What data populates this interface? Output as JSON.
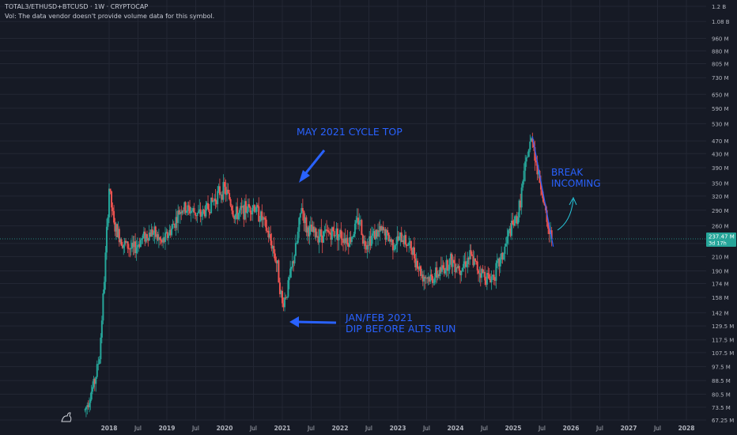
{
  "header": {
    "symbol_line": "TOTAL3/ETHUSD+BTCUSD · 1W · CRYPTOCAP",
    "volume_note": "Vol: The data vendor doesn't provide volume data for this symbol."
  },
  "colors": {
    "background": "#161a25",
    "grid": "#232734",
    "up_candle": "#26a69a",
    "down_candle": "#ef5350",
    "annotation": "#2962ff",
    "arrow_up": "#26c6da",
    "price_label_bg": "#26a69a",
    "axis_text": "#b2b5be"
  },
  "price_label": {
    "value": "237.47 M",
    "countdown": "3d 17h"
  },
  "annotations": {
    "cycle_top": "MAY 2021 CYCLE TOP",
    "dip_line1": "JAN/FEB 2021",
    "dip_line2": "DIP BEFORE ALTS RUN",
    "break_line1": "BREAK",
    "break_line2": "INCOMING"
  },
  "chart_data": {
    "type": "candlestick",
    "scale": "log",
    "interval": "1W",
    "grid": true,
    "x_ticks": [
      "2018",
      "Jul",
      "2019",
      "Jul",
      "2020",
      "Jul",
      "2021",
      "Jul",
      "2022",
      "Jul",
      "2023",
      "Jul",
      "2024",
      "Jul",
      "2025",
      "Jul",
      "2026",
      "Jul",
      "2027",
      "Jul",
      "2028"
    ],
    "y_ticks": [
      "1.2 B",
      "1.08 B",
      "960 M",
      "880 M",
      "805 M",
      "730 M",
      "650 M",
      "590 M",
      "530 M",
      "470 M",
      "430 M",
      "390 M",
      "350 M",
      "320 M",
      "290 M",
      "260 M",
      "230 M",
      "210 M",
      "190 M",
      "174 M",
      "158 M",
      "142 M",
      "129.5 M",
      "117.5 M",
      "107.5 M",
      "97.5 M",
      "88.5 M",
      "80.5 M",
      "73.5 M",
      "67.25 M"
    ],
    "ylim": [
      67250000,
      1200000000
    ],
    "xlim": [
      "2017-04",
      "2028-07"
    ],
    "anchors": [
      [
        "2017-08",
        72
      ],
      [
        "2017-10",
        88
      ],
      [
        "2017-11",
        105
      ],
      [
        "2017-12",
        180
      ],
      [
        "2018-01",
        340
      ],
      [
        "2018-02",
        260
      ],
      [
        "2018-04",
        230
      ],
      [
        "2018-06",
        220
      ],
      [
        "2018-08",
        240
      ],
      [
        "2018-10",
        250
      ],
      [
        "2018-12",
        230
      ],
      [
        "2019-02",
        255
      ],
      [
        "2019-04",
        295
      ],
      [
        "2019-06",
        290
      ],
      [
        "2019-08",
        280
      ],
      [
        "2019-10",
        300
      ],
      [
        "2019-12",
        330
      ],
      [
        "2020-01",
        335
      ],
      [
        "2020-02",
        315
      ],
      [
        "2020-03",
        280
      ],
      [
        "2020-05",
        290
      ],
      [
        "2020-07",
        300
      ],
      [
        "2020-09",
        270
      ],
      [
        "2020-11",
        225
      ],
      [
        "2020-12",
        195
      ],
      [
        "2021-01",
        150
      ],
      [
        "2021-02",
        165
      ],
      [
        "2021-04",
        230
      ],
      [
        "2021-05",
        300
      ],
      [
        "2021-06",
        255
      ],
      [
        "2021-08",
        245
      ],
      [
        "2021-10",
        245
      ],
      [
        "2021-12",
        250
      ],
      [
        "2022-01",
        245
      ],
      [
        "2022-03",
        235
      ],
      [
        "2022-05",
        275
      ],
      [
        "2022-06",
        230
      ],
      [
        "2022-08",
        245
      ],
      [
        "2022-10",
        250
      ],
      [
        "2022-12",
        230
      ],
      [
        "2023-02",
        240
      ],
      [
        "2023-04",
        220
      ],
      [
        "2023-06",
        185
      ],
      [
        "2023-08",
        180
      ],
      [
        "2023-10",
        190
      ],
      [
        "2023-12",
        205
      ],
      [
        "2024-02",
        195
      ],
      [
        "2024-04",
        210
      ],
      [
        "2024-06",
        190
      ],
      [
        "2024-08",
        180
      ],
      [
        "2024-09",
        185
      ],
      [
        "2024-11",
        215
      ],
      [
        "2024-12",
        245
      ],
      [
        "2025-02",
        280
      ],
      [
        "2025-03",
        350
      ],
      [
        "2025-04",
        430
      ],
      [
        "2025-05",
        485
      ],
      [
        "2025-06",
        380
      ],
      [
        "2025-07",
        335
      ],
      [
        "2025-08",
        260
      ],
      [
        "2025-09",
        237.47
      ]
    ],
    "anchor_units": "M",
    "current_price": 237.47
  }
}
